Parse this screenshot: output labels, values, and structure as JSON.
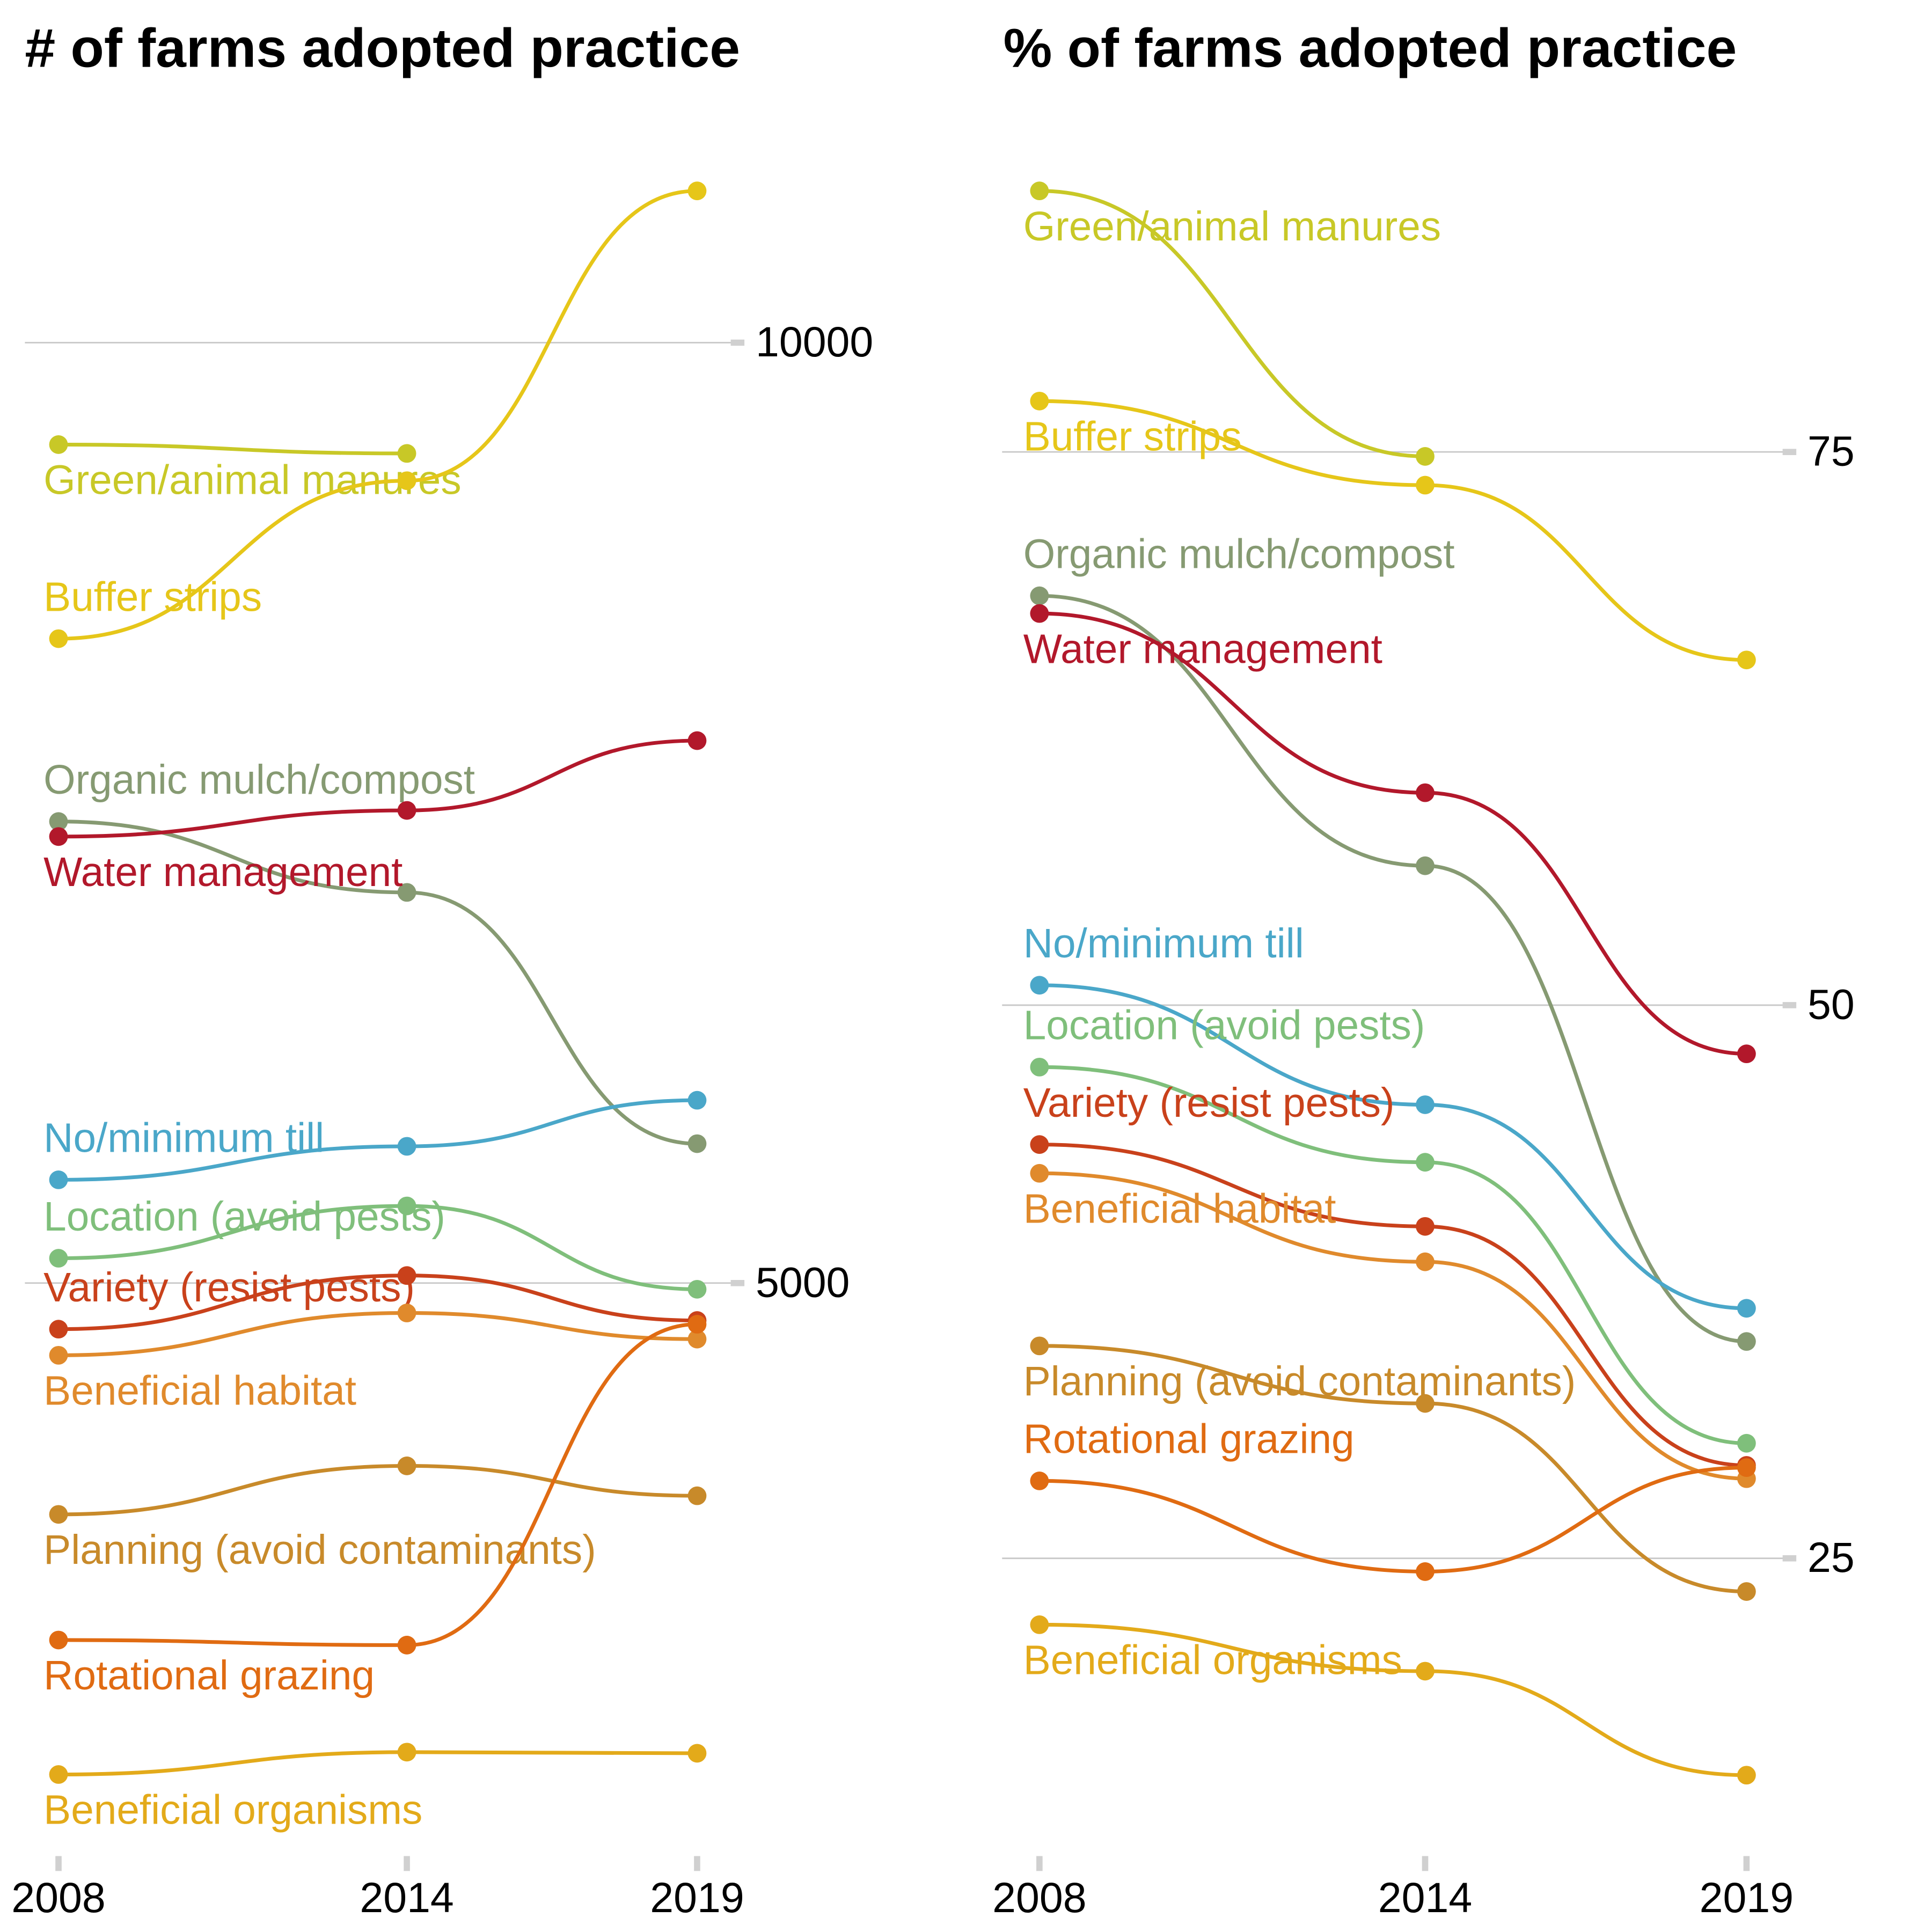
{
  "chart_data": [
    {
      "type": "line",
      "title": "# of farms adopted practice",
      "x": [
        2008,
        2014,
        2019
      ],
      "xlim": [
        2008,
        2019
      ],
      "xticks": [
        2008,
        2014,
        2019
      ],
      "ylim": [
        1960,
        11160
      ],
      "yticks": [
        5000,
        10000
      ],
      "grid": true,
      "series": [
        {
          "name": "Green/animal manures",
          "color": "#c8c827",
          "values": [
            9458,
            9411,
            null
          ]
        },
        {
          "name": "Buffer strips",
          "color": "#e6c619",
          "values": [
            8426,
            9266,
            10807
          ]
        },
        {
          "name": "Organic mulch/compost",
          "color": "#869a72",
          "values": [
            7454,
            7077,
            5741
          ]
        },
        {
          "name": "Water management",
          "color": "#b2182b",
          "values": [
            7374,
            7513,
            7884
          ]
        },
        {
          "name": "No/minimum till",
          "color": "#4aa7c9",
          "values": [
            5549,
            5727,
            5972
          ]
        },
        {
          "name": "Location (avoid pests)",
          "color": "#7fbf7b",
          "values": [
            5132,
            5410,
            4967
          ]
        },
        {
          "name": "Variety (resist pests)",
          "color": "#c9411b",
          "values": [
            4755,
            5040,
            4801
          ]
        },
        {
          "name": "Beneficial habitat",
          "color": "#e08a2c",
          "values": [
            4616,
            4841,
            4702
          ]
        },
        {
          "name": "Planning (avoid contaminants)",
          "color": "#c88a2a",
          "values": [
            3770,
            4028,
            3869
          ]
        },
        {
          "name": "Rotational grazing",
          "color": "#e06b12",
          "values": [
            3102,
            3075,
            4781
          ]
        },
        {
          "name": "Beneficial organisms",
          "color": "#e3aa1a",
          "values": [
            2387,
            2506,
            2500
          ]
        }
      ]
    },
    {
      "type": "line",
      "title": "% of farms adopted practice",
      "x": [
        2008,
        2014,
        2019
      ],
      "xlim": [
        2008,
        2019
      ],
      "xticks": [
        2008,
        2014,
        2019
      ],
      "ylim": [
        11.6,
        89.8
      ],
      "yticks": [
        25,
        50,
        75
      ],
      "grid": true,
      "series": [
        {
          "name": "Green/animal manures",
          "color": "#c8c827",
          "values": [
            86.8,
            74.8,
            null
          ]
        },
        {
          "name": "Buffer strips",
          "color": "#e6c619",
          "values": [
            77.3,
            73.5,
            65.6
          ]
        },
        {
          "name": "Organic mulch/compost",
          "color": "#869a72",
          "values": [
            68.5,
            56.3,
            34.8
          ]
        },
        {
          "name": "Water management",
          "color": "#b2182b",
          "values": [
            67.7,
            59.6,
            47.8
          ]
        },
        {
          "name": "No/minimum till",
          "color": "#4aa7c9",
          "values": [
            50.9,
            45.5,
            36.3
          ]
        },
        {
          "name": "Location (avoid pests)",
          "color": "#7fbf7b",
          "values": [
            47.2,
            42.9,
            30.2
          ]
        },
        {
          "name": "Variety (resist pests)",
          "color": "#c9411b",
          "values": [
            43.7,
            40.0,
            29.2
          ]
        },
        {
          "name": "Beneficial habitat",
          "color": "#e08a2c",
          "values": [
            42.4,
            38.4,
            28.6
          ]
        },
        {
          "name": "Planning (avoid contaminants)",
          "color": "#c88a2a",
          "values": [
            34.6,
            32.0,
            23.5
          ]
        },
        {
          "name": "Rotational grazing",
          "color": "#e06b12",
          "values": [
            28.5,
            24.4,
            29.1
          ]
        },
        {
          "name": "Beneficial organisms",
          "color": "#e3aa1a",
          "values": [
            22.0,
            19.9,
            15.2
          ]
        }
      ]
    }
  ]
}
